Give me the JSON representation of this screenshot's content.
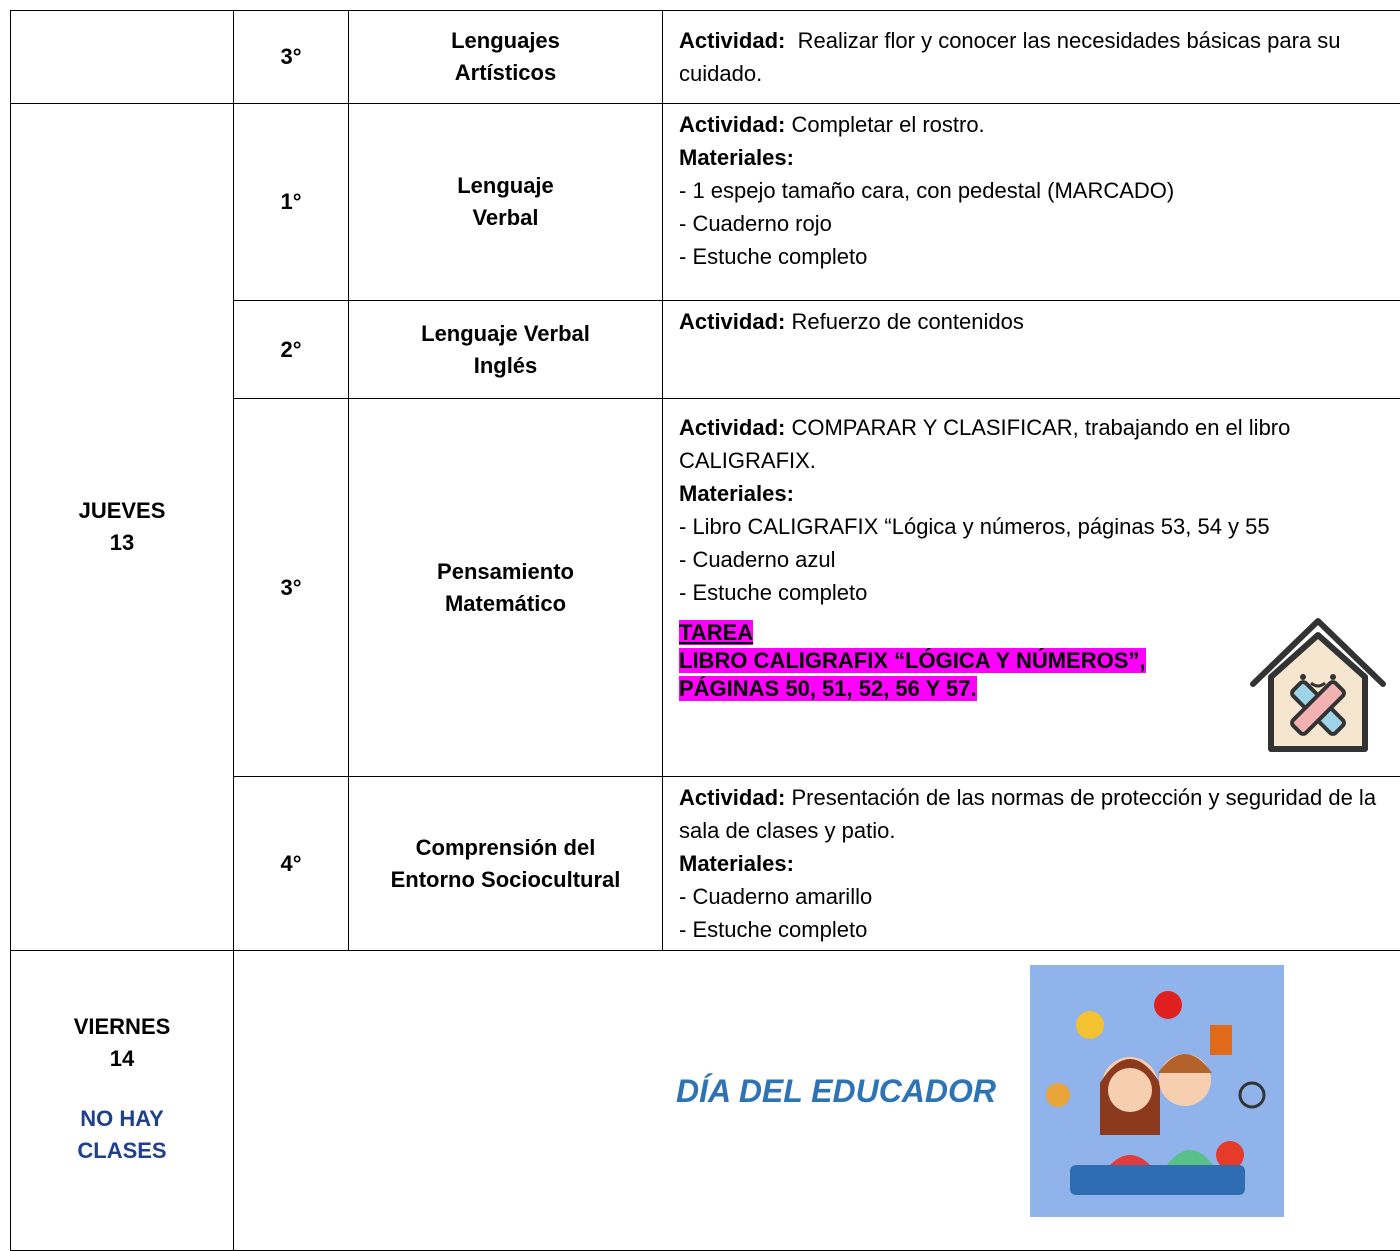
{
  "labels": {
    "activity": "Actividad:",
    "materials": "Materiales:"
  },
  "table": {
    "rows": [
      {
        "day": null,
        "period": "3°",
        "subject": [
          "Lenguajes",
          "Artísticos"
        ],
        "activity": "Realizar flor y conocer las necesidades básicas para su cuidado."
      },
      {
        "day": {
          "name": "JUEVES",
          "date": "13"
        },
        "period": "1°",
        "subject": [
          "Lenguaje",
          "Verbal"
        ],
        "activity": "Completar el rostro.",
        "materials": [
          "- 1 espejo tamaño cara, con pedestal (MARCADO)",
          "- Cuaderno rojo",
          "- Estuche completo"
        ]
      },
      {
        "period": "2°",
        "subject": [
          "Lenguaje Verbal",
          "Inglés"
        ],
        "activity": "Refuerzo de contenidos"
      },
      {
        "period": "3°",
        "subject": [
          "Pensamiento",
          "Matemático"
        ],
        "activity": "COMPARAR Y CLASIFICAR, trabajando en el libro CALIGRAFIX.",
        "materials": [
          "- Libro CALIGRAFIX “Lógica y números, páginas 53, 54 y 55",
          "- Cuaderno azul",
          "- Estuche completo"
        ],
        "homework": {
          "title": "TAREA",
          "lines": [
            "LIBRO CALIGRAFIX “LÓGICA Y NÚMEROS”,",
            "PÁGINAS 50, 51, 52, 56 Y 57."
          ]
        }
      },
      {
        "period": "4°",
        "subject": [
          "Comprensión del",
          "Entorno Sociocultural"
        ],
        "activity": "Presentación de las normas de protección y seguridad de la sala de clases y patio.",
        "materials": [
          "- Cuaderno amarillo",
          "- Estuche completo"
        ]
      },
      {
        "day": {
          "name": "VIERNES",
          "date": "14",
          "note": [
            "NO HAY",
            "CLASES"
          ]
        },
        "event": "DÍA DEL EDUCADOR"
      }
    ]
  }
}
